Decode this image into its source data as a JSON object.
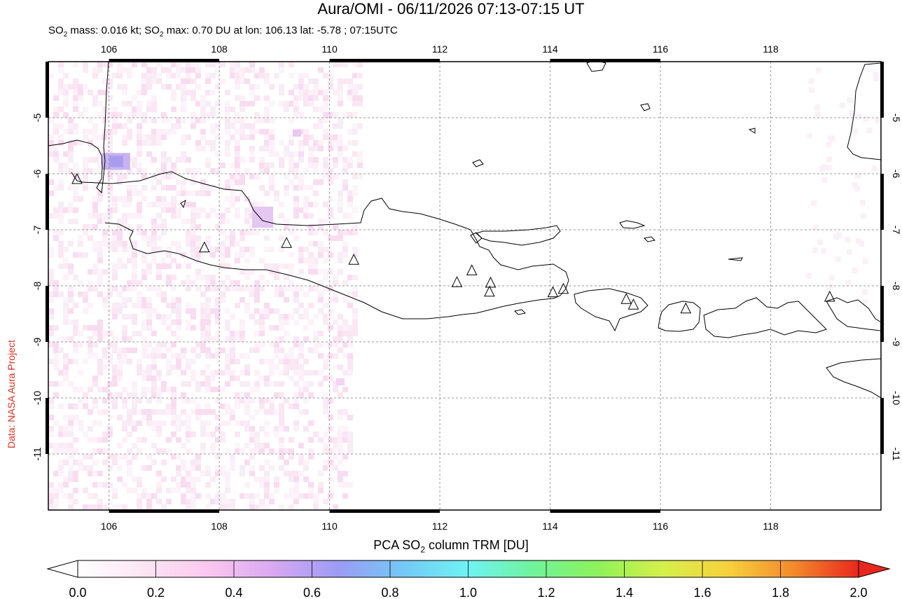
{
  "title": "Aura/OMI - 06/11/2026 07:13-07:15 UT",
  "subtitle": {
    "mass_prefix": "SO",
    "mass_sub": "2",
    "mass_text": " mass: 0.016 kt; SO",
    "max_sub": "2",
    "max_text": " max: 0.70 DU at lon: 106.13 lat: -5.78 ; 07:15UTC"
  },
  "credit": "Data: NASA Aura Project",
  "map": {
    "lon_ticks": [
      "106",
      "108",
      "110",
      "112",
      "114",
      "116",
      "118"
    ],
    "lat_ticks": [
      "-5",
      "-6",
      "-7",
      "-8",
      "-9",
      "-10",
      "-11"
    ],
    "lon_range": [
      104.9,
      120.0
    ],
    "lat_range": [
      -4.0,
      -12.0
    ],
    "volcanoes": [
      {
        "lon": 105.42,
        "lat": -6.1
      },
      {
        "lon": 107.73,
        "lat": -7.32
      },
      {
        "lon": 109.22,
        "lat": -7.24
      },
      {
        "lon": 110.44,
        "lat": -7.54
      },
      {
        "lon": 112.31,
        "lat": -7.94
      },
      {
        "lon": 112.58,
        "lat": -7.73
      },
      {
        "lon": 112.92,
        "lat": -7.95
      },
      {
        "lon": 112.9,
        "lat": -8.11
      },
      {
        "lon": 114.05,
        "lat": -8.12
      },
      {
        "lon": 114.24,
        "lat": -8.06
      },
      {
        "lon": 115.38,
        "lat": -8.24
      },
      {
        "lon": 115.51,
        "lat": -8.34
      },
      {
        "lon": 116.46,
        "lat": -8.41
      },
      {
        "lon": 119.07,
        "lat": -8.2
      }
    ],
    "so2_max_point": {
      "lon": 106.13,
      "lat": -5.78,
      "value": 0.7
    }
  },
  "colorbar": {
    "title_prefix": "PCA SO",
    "title_sub": "2",
    "title_suffix": " column TRM [DU]",
    "ticks": [
      "0.0",
      "0.2",
      "0.4",
      "0.6",
      "0.8",
      "1.0",
      "1.2",
      "1.4",
      "1.6",
      "1.8",
      "2.0"
    ],
    "range": [
      0.0,
      2.0
    ],
    "colors": [
      "#ffffff",
      "#fde6f3",
      "#fbc7ef",
      "#d9a8f2",
      "#9c9cf5",
      "#74c8f6",
      "#6ff3f3",
      "#70f39a",
      "#8ef25a",
      "#d6f04a",
      "#f7d13c",
      "#f38a2c",
      "#e8281d"
    ]
  }
}
